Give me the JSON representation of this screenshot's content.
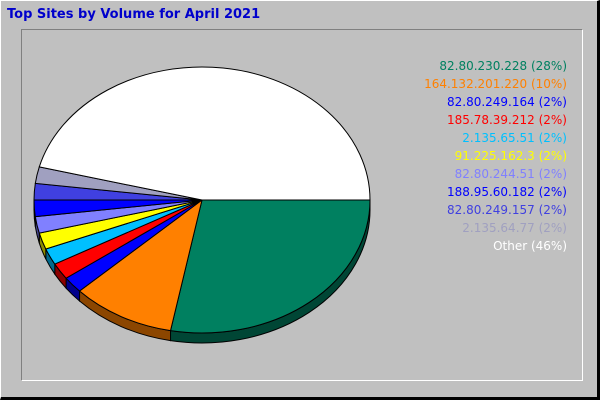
{
  "chart_data": {
    "type": "pie",
    "title": "Top Sites by Volume for April 2021",
    "slices": [
      {
        "label": "82.80.230.228 (28%)",
        "value": 28,
        "color": "#008060"
      },
      {
        "label": "164.132.201.220 (10%)",
        "value": 10,
        "color": "#ff8000"
      },
      {
        "label": "82.80.249.164 (2%)",
        "value": 2,
        "color": "#0000ff"
      },
      {
        "label": "185.78.39.212 (2%)",
        "value": 2,
        "color": "#ff0000"
      },
      {
        "label": "2.135.65.51 (2%)",
        "value": 2,
        "color": "#00c0ff"
      },
      {
        "label": "91.225.162.3 (2%)",
        "value": 2,
        "color": "#ffff00"
      },
      {
        "label": "82.80.244.51 (2%)",
        "value": 2,
        "color": "#8080ff"
      },
      {
        "label": "188.95.60.182 (2%)",
        "value": 2,
        "color": "#0000ff"
      },
      {
        "label": "82.80.249.157 (2%)",
        "value": 2,
        "color": "#4040e0"
      },
      {
        "label": "2.135.64.77 (2%)",
        "value": 2,
        "color": "#a0a0c0"
      },
      {
        "label": "Other (46%)",
        "value": 46,
        "color": "#ffffff"
      }
    ],
    "legend_placement": "top-right"
  }
}
